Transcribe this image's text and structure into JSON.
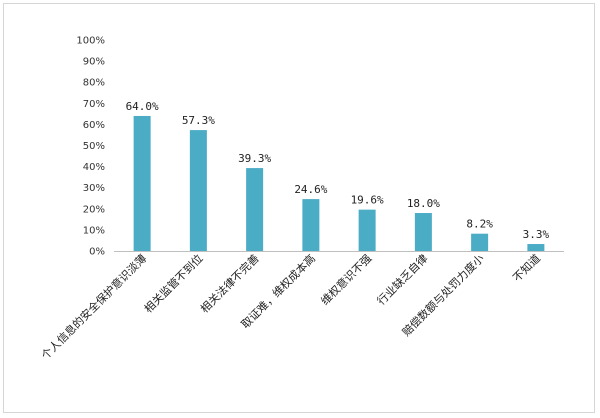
{
  "chart_data": {
    "type": "bar",
    "categories": [
      "个人信息的安全保护意识淡薄",
      "相关监管不到位",
      "相关法律不完善",
      "取证难，维权成本高",
      "维权意识不强",
      "行业缺乏自律",
      "赔偿数额与处罚力度小",
      "不知道"
    ],
    "values": [
      64.0,
      57.3,
      39.3,
      24.6,
      19.6,
      18.0,
      8.2,
      3.3
    ],
    "data_labels": [
      "64.0%",
      "57.3%",
      "39.3%",
      "24.6%",
      "19.6%",
      "18.0%",
      "8.2%",
      "3.3%"
    ],
    "y_ticks": [
      {
        "value": 0,
        "label": "0%"
      },
      {
        "value": 10,
        "label": "10%"
      },
      {
        "value": 20,
        "label": "20%"
      },
      {
        "value": 30,
        "label": "30%"
      },
      {
        "value": 40,
        "label": "40%"
      },
      {
        "value": 50,
        "label": "50%"
      },
      {
        "value": 60,
        "label": "60%"
      },
      {
        "value": 70,
        "label": "70%"
      },
      {
        "value": 80,
        "label": "80%"
      },
      {
        "value": 90,
        "label": "90%"
      },
      {
        "value": 100,
        "label": "100%"
      }
    ],
    "ylim": [
      0,
      100
    ],
    "grid": false,
    "title": "",
    "xlabel": "",
    "ylabel": "",
    "bar_color": "#4bacc6",
    "axis_color": "#bfbfbf"
  }
}
